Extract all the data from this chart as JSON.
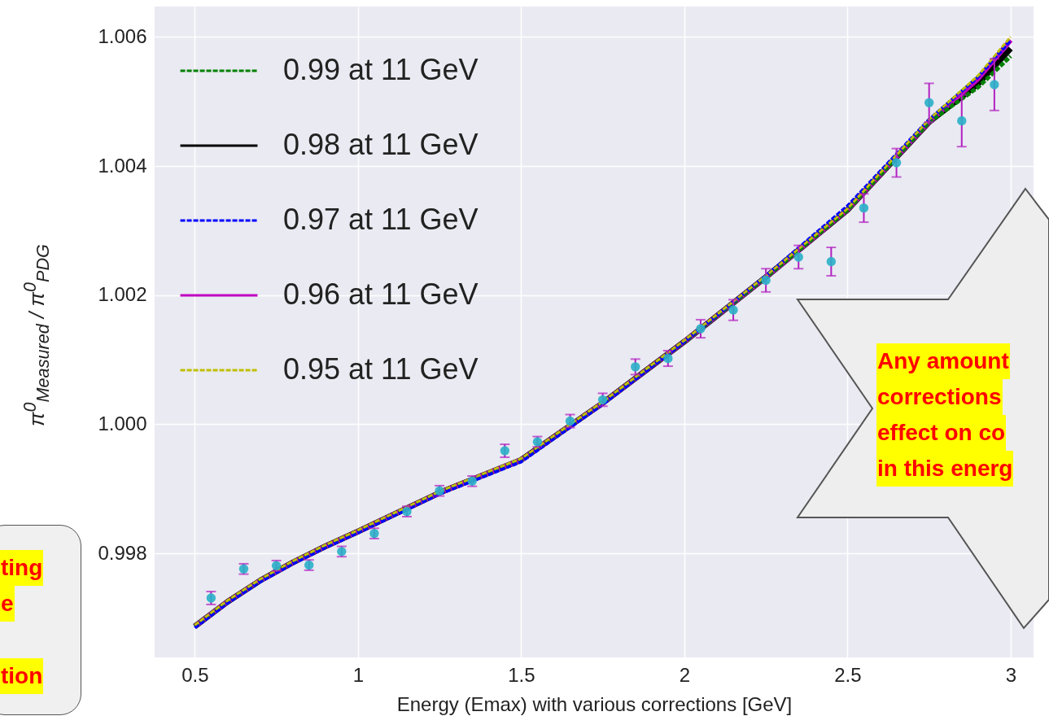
{
  "chart_data": {
    "type": "line",
    "xlabel": "Energy (Emax) with various corrections [GeV]",
    "ylabel": "π$^{0}$$_{Measured}$ / π$^{0}$$_{PDG}$",
    "x": [
      0.5,
      0.6,
      0.7,
      0.8,
      0.9,
      1.0,
      1.25,
      1.5,
      1.75,
      2.0,
      2.25,
      2.5,
      2.75,
      2.9,
      3.0
    ],
    "series": [
      {
        "name": "0.99 at 11 GeV",
        "color": "#008000",
        "line_style": "dashed",
        "values": [
          0.99687,
          0.99725,
          0.99758,
          0.99786,
          0.99811,
          0.99834,
          0.99894,
          0.99945,
          1.00033,
          1.00128,
          1.00228,
          1.00332,
          1.00468,
          1.00522,
          1.0057
        ]
      },
      {
        "name": "0.98 at 11 GeV",
        "color": "#000000",
        "line_style": "solid",
        "values": [
          0.99687,
          0.99725,
          0.99758,
          0.99786,
          0.99811,
          0.99834,
          0.99894,
          0.99945,
          1.00033,
          1.00128,
          1.00228,
          1.00332,
          1.00468,
          1.00527,
          1.00582
        ]
      },
      {
        "name": "0.97 at 11 GeV",
        "color": "#0000ff",
        "line_style": "dashed",
        "values": [
          0.99685,
          0.99723,
          0.99756,
          0.99784,
          0.99809,
          0.99832,
          0.99892,
          0.99942,
          1.00031,
          1.00128,
          1.0023,
          1.00338,
          1.00472,
          1.00538,
          1.00595
        ]
      },
      {
        "name": "0.96 at 11 GeV",
        "color": "#bf00bf",
        "line_style": "solid",
        "values": [
          0.99687,
          0.99725,
          0.99758,
          0.99786,
          0.99811,
          0.99834,
          0.99894,
          0.99945,
          1.00033,
          1.00128,
          1.00228,
          1.00332,
          1.00468,
          1.00535,
          1.00595
        ]
      },
      {
        "name": "0.95 at 11 GeV",
        "color": "#bfbf00",
        "line_style": "dashed",
        "values": [
          0.99689,
          0.99727,
          0.9976,
          0.99788,
          0.99813,
          0.99836,
          0.99896,
          0.99947,
          1.00035,
          1.0013,
          1.0023,
          1.00334,
          1.00472,
          1.0054,
          1.006
        ]
      },
      {
        "type": "scatter",
        "color": "#2ab0c8",
        "marker": "circle",
        "x": [
          0.55,
          0.65,
          0.75,
          0.85,
          0.95,
          1.05,
          1.15,
          1.25,
          1.35,
          1.45,
          1.55,
          1.65,
          1.75,
          1.85,
          1.95,
          2.05,
          2.15,
          2.25,
          2.35,
          2.45,
          2.55,
          2.65,
          2.75,
          2.85,
          2.95
        ],
        "values": [
          0.99731,
          0.99776,
          0.99781,
          0.99782,
          0.99803,
          0.99831,
          0.99865,
          0.99897,
          0.99912,
          0.99959,
          0.99973,
          1.00005,
          1.00038,
          1.00089,
          1.00102,
          1.00148,
          1.00177,
          1.00223,
          1.00259,
          1.00252,
          1.00335,
          1.00405,
          1.00498,
          1.0047,
          1.00526
        ],
        "errors": [
          0.0001,
          8e-05,
          8e-05,
          8e-05,
          8e-05,
          8e-05,
          8e-05,
          8e-05,
          8e-05,
          0.0001,
          8e-05,
          0.0001,
          0.0001,
          0.00012,
          0.00012,
          0.00014,
          0.00016,
          0.00018,
          0.00018,
          0.00022,
          0.00022,
          0.00022,
          0.0003,
          0.0004,
          0.0004
        ]
      }
    ],
    "xlim": [
      0.377,
      3.07
    ],
    "ylim": [
      0.99639,
      1.00647
    ],
    "xticks": [
      0.5,
      1.0,
      1.5,
      2.0,
      2.5,
      3.0
    ],
    "yticks": [
      {
        "value": 0.998,
        "label": "0.998"
      },
      {
        "value": 1.0,
        "label": "1.000"
      },
      {
        "value": 1.002,
        "label": "1.002"
      },
      {
        "value": 1.004,
        "label": "1.004"
      },
      {
        "value": 1.006,
        "label": "1.006"
      }
    ],
    "grid": true,
    "legend": "top left",
    "annotations": [
      "Any amount",
      "corrections",
      "effect on co",
      "in this energ",
      "ting",
      "e",
      "tion"
    ]
  }
}
